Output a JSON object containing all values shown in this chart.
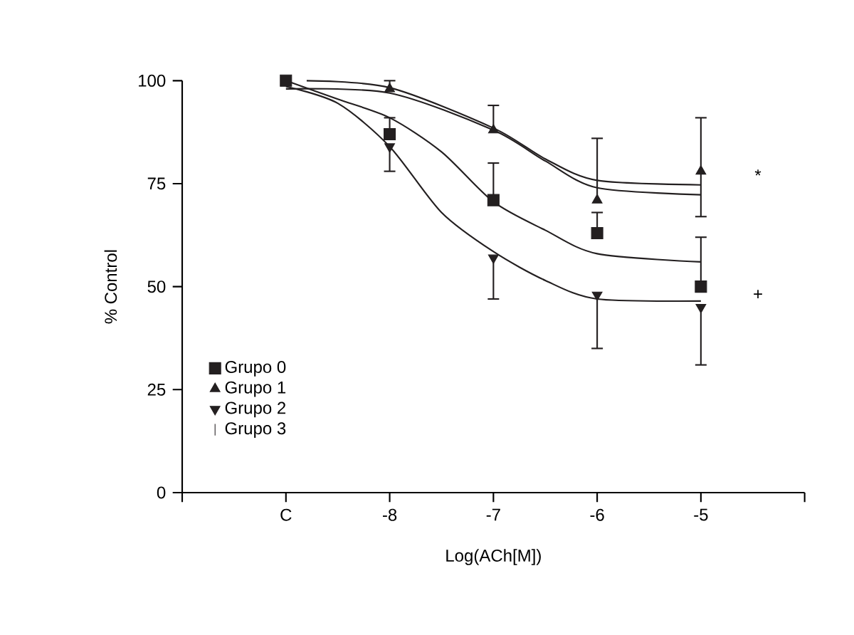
{
  "chart_data": {
    "type": "line",
    "xlabel": "Log(ACh[M])",
    "ylabel": "% Control",
    "x": [
      -9,
      -8,
      -7,
      -6,
      -5
    ],
    "xlim": [
      -10,
      -4
    ],
    "xticks": [
      {
        "value": -10,
        "label": null
      },
      {
        "value": -9,
        "label": "C"
      },
      -8,
      -7,
      -6,
      -5,
      {
        "value": -4,
        "label": null
      }
    ],
    "ylim": [
      0,
      100
    ],
    "yticks": [
      0,
      25,
      50,
      75,
      100
    ],
    "legend": "left",
    "line_style": "solid",
    "series": [
      {
        "name": "Grupo 0",
        "type": "scatter",
        "marker": "square",
        "color": "#231f20",
        "values": [
          100,
          87,
          71,
          63,
          50
        ],
        "errors": [
          null,
          [
            87,
            91
          ],
          [
            71,
            80
          ],
          [
            63,
            68
          ],
          [
            50,
            62
          ]
        ]
      },
      {
        "name": "Grupo 1",
        "type": "scatter",
        "marker": "triangle",
        "color": "#231f20",
        "values": [
          null,
          98,
          88,
          71,
          78
        ],
        "errors": [
          null,
          [
            98,
            100
          ],
          [
            88,
            94
          ],
          [
            71,
            86
          ],
          [
            67,
            91
          ]
        ]
      },
      {
        "name": "Grupo 2",
        "type": "scatter",
        "marker": "triangle_down",
        "color": "#231f20",
        "values": [
          null,
          84,
          57,
          48,
          45
        ],
        "errors": [
          null,
          [
            78,
            84
          ],
          [
            47,
            57
          ],
          [
            35,
            48
          ],
          [
            31,
            45
          ]
        ]
      },
      {
        "name": "Grupo 3",
        "type": "scatter",
        "marker": "vbar",
        "color": "#231f20",
        "values": [
          null,
          null,
          null,
          null,
          null
        ]
      },
      {
        "color": "#231f20",
        "x": [
          -8.8,
          -8,
          -7,
          -6.5,
          -6,
          -5
        ],
        "values": [
          100,
          98.3,
          88.5,
          81,
          75.8,
          74.7
        ]
      },
      {
        "color": "#231f20",
        "x": [
          -9,
          -8,
          -7,
          -6.5,
          -6,
          -5
        ],
        "values": [
          98,
          97,
          88,
          80.5,
          74,
          72.3
        ]
      },
      {
        "color": "#231f20",
        "x": [
          -9,
          -8.5,
          -8,
          -7.5,
          -7,
          -6.5,
          -6,
          -5
        ],
        "values": [
          100,
          95.5,
          91,
          82.7,
          70.6,
          63.7,
          58,
          56
        ]
      },
      {
        "color": "#231f20",
        "x": [
          -9,
          -8.5,
          -8,
          -7.5,
          -7,
          -6.5,
          -6,
          -5
        ],
        "values": [
          98.6,
          94.5,
          84,
          68,
          58.5,
          51.5,
          47,
          46.5
        ]
      }
    ],
    "annotations": [
      "*",
      "+"
    ]
  }
}
